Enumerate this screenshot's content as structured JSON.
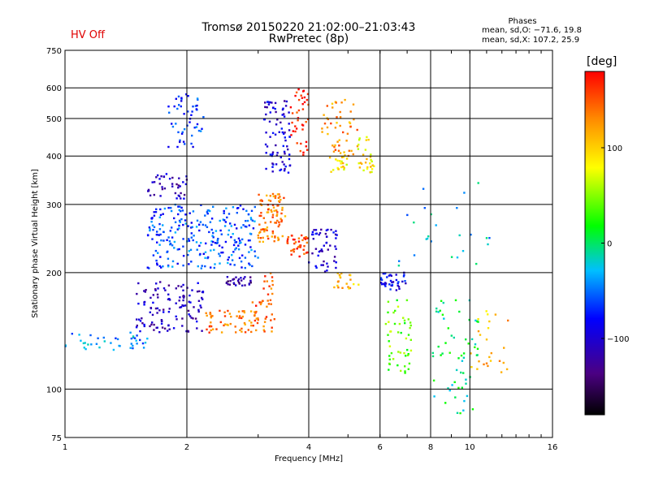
{
  "header": {
    "status": "HV Off",
    "title": "Tromsø 20150220 21:02:00–21:03:43",
    "subtitle": "RwPretec (8p)",
    "phases_heading": "Phases",
    "phases_o": "mean, sd,O: −71.6, 19.8",
    "phases_x": "mean, sd,X: 107.2, 25.9"
  },
  "colorbar": {
    "unit": "[deg]",
    "tick_labels": [
      "100",
      "0",
      "−100"
    ],
    "tick_values": [
      100,
      0,
      -100
    ],
    "range": [
      -180,
      180
    ]
  },
  "chart_data": {
    "type": "scatter",
    "xlabel": "Frequency [MHz]",
    "ylabel": "Stationary phase Virtual Height [km]",
    "x_scale": "log2",
    "y_scale": "log",
    "xlim": [
      1,
      16
    ],
    "ylim": [
      75,
      750
    ],
    "x_ticks": [
      1,
      2,
      4,
      6,
      8,
      10,
      16
    ],
    "y_ticks": [
      75,
      100,
      200,
      300,
      400,
      500,
      600,
      750
    ],
    "grid": true,
    "clusters": [
      {
        "f": [
          1.0,
          1.6
        ],
        "h": [
          125,
          140
        ],
        "phase": -40,
        "n": 40
      },
      {
        "f": [
          1.5,
          2.2
        ],
        "h": [
          140,
          190
        ],
        "phase": -110,
        "n": 120
      },
      {
        "f": [
          1.6,
          2.0
        ],
        "h": [
          310,
          360
        ],
        "phase": -110,
        "n": 40
      },
      {
        "f": [
          1.6,
          3.0
        ],
        "h": [
          205,
          300
        ],
        "phase": -60,
        "n": 260
      },
      {
        "f": [
          1.8,
          2.2
        ],
        "h": [
          420,
          580
        ],
        "phase": -70,
        "n": 50
      },
      {
        "f": [
          2.2,
          3.0
        ],
        "h": [
          140,
          160
        ],
        "phase": 140,
        "n": 60
      },
      {
        "f": [
          2.5,
          2.9
        ],
        "h": [
          185,
          195
        ],
        "phase": -120,
        "n": 30
      },
      {
        "f": [
          2.9,
          3.3
        ],
        "h": [
          140,
          200
        ],
        "phase": 145,
        "n": 40
      },
      {
        "f": [
          3.0,
          3.5
        ],
        "h": [
          240,
          320
        ],
        "phase": 135,
        "n": 90
      },
      {
        "f": [
          3.1,
          3.6
        ],
        "h": [
          360,
          560
        ],
        "phase": -100,
        "n": 80
      },
      {
        "f": [
          3.5,
          4.0
        ],
        "h": [
          220,
          250
        ],
        "phase": 160,
        "n": 40
      },
      {
        "f": [
          3.6,
          4.0
        ],
        "h": [
          400,
          600
        ],
        "phase": 170,
        "n": 40
      },
      {
        "f": [
          4.0,
          4.7
        ],
        "h": [
          200,
          260
        ],
        "phase": -100,
        "n": 50
      },
      {
        "f": [
          4.3,
          5.3
        ],
        "h": [
          400,
          560
        ],
        "phase": 130,
        "n": 50
      },
      {
        "f": [
          4.5,
          5.0
        ],
        "h": [
          360,
          400
        ],
        "phase": 90,
        "n": 20
      },
      {
        "f": [
          5.3,
          5.8
        ],
        "h": [
          360,
          450
        ],
        "phase": 90,
        "n": 30
      },
      {
        "f": [
          4.6,
          5.4
        ],
        "h": [
          180,
          200
        ],
        "phase": 110,
        "n": 20
      },
      {
        "f": [
          6.0,
          7.0
        ],
        "h": [
          180,
          200
        ],
        "phase": -90,
        "n": 40
      },
      {
        "f": [
          6.2,
          7.2
        ],
        "h": [
          110,
          170
        ],
        "phase": 40,
        "n": 50
      },
      {
        "f": [
          8.0,
          10.5
        ],
        "h": [
          85,
          170
        ],
        "phase": 0,
        "n": 60
      },
      {
        "f": [
          10.0,
          12.5
        ],
        "h": [
          110,
          160
        ],
        "phase": 110,
        "n": 25
      },
      {
        "f": [
          6.5,
          11.5
        ],
        "h": [
          200,
          350
        ],
        "phase": -30,
        "n": 25
      }
    ]
  }
}
